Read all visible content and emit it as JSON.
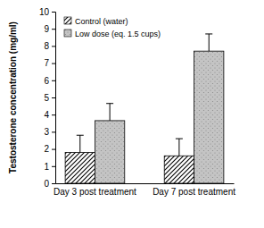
{
  "chart_data": {
    "type": "bar",
    "y_label": "Testosterone concentration (mg/ml)",
    "categories": [
      "Day 3 post treatment",
      "Day 7 post treatment"
    ],
    "series": [
      {
        "name": "Control (water)",
        "color": "#000000",
        "values": [
          1.8,
          1.6
        ],
        "errors": [
          1.0,
          1.0
        ]
      },
      {
        "name": "Low dose (eq. 1.5 cups)",
        "color": "#c4c4c4",
        "values": [
          3.65,
          7.7
        ],
        "errors": [
          1.0,
          1.0
        ]
      }
    ],
    "ylim": [
      0,
      10
    ],
    "yticks": [
      0,
      1,
      2,
      3,
      4,
      5,
      6,
      7,
      8,
      9,
      10
    ],
    "grid": false,
    "legend": "upper left"
  }
}
